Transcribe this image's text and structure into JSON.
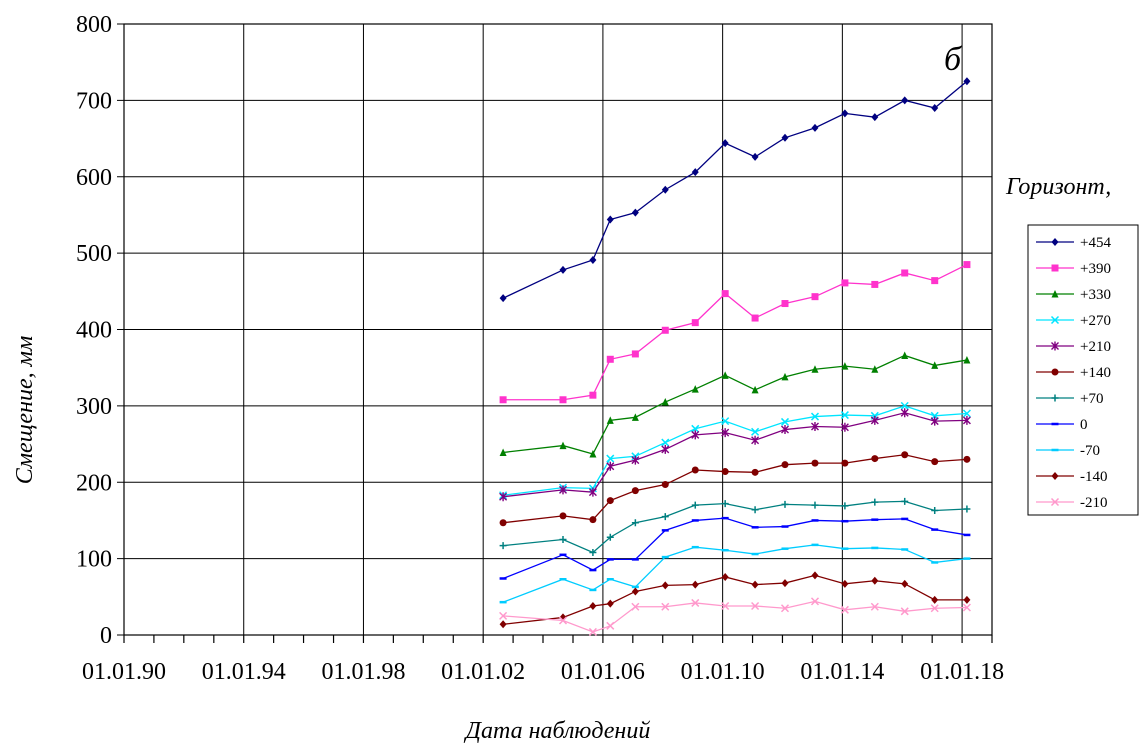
{
  "chart_data": {
    "type": "line",
    "xlabel": "Дата наблюдений",
    "ylabel": "Смещение, мм",
    "panel_label": "б",
    "legend_title": "Горизонт,",
    "legend_placement": "right",
    "grid": true,
    "ylim": [
      0,
      800
    ],
    "y_ticks": [
      0,
      100,
      200,
      300,
      400,
      500,
      600,
      700,
      800
    ],
    "xlim": [
      "1990-01-01",
      "2019-01-01"
    ],
    "x_tick_dates": [
      "1990-01-01",
      "1994-01-01",
      "1998-01-01",
      "2002-01-01",
      "2006-01-01",
      "2010-01-01",
      "2014-01-01",
      "2018-01-01"
    ],
    "x_tick_labels": [
      "01.01.90",
      "01.01.94",
      "01.01.98",
      "01.01.02",
      "01.01.06",
      "01.01.10",
      "01.01.14",
      "01.01.18"
    ],
    "x": [
      "2002-09-01",
      "2004-09-01",
      "2005-09-01",
      "2006-04-01",
      "2007-02-01",
      "2008-02-01",
      "2009-02-01",
      "2010-02-01",
      "2011-02-01",
      "2012-02-01",
      "2013-02-01",
      "2014-02-01",
      "2015-02-01",
      "2016-02-01",
      "2017-02-01",
      "2018-03-01"
    ],
    "series": [
      {
        "name": "+454",
        "color": "#000080",
        "marker": "diamond",
        "values": [
          441,
          478,
          491,
          544,
          553,
          583,
          606,
          644,
          626,
          651,
          664,
          683,
          678,
          700,
          690,
          725
        ]
      },
      {
        "name": "+390",
        "color": "#ff33cc",
        "marker": "square",
        "values": [
          308,
          308,
          314,
          361,
          368,
          399,
          409,
          447,
          415,
          434,
          443,
          461,
          459,
          474,
          464,
          485
        ]
      },
      {
        "name": "+330",
        "color": "#008000",
        "marker": "triangle",
        "values": [
          239,
          248,
          237,
          281,
          285,
          305,
          322,
          340,
          321,
          338,
          348,
          352,
          348,
          366,
          353,
          360
        ]
      },
      {
        "name": "+270",
        "color": "#00e5ff",
        "marker": "x",
        "values": [
          183,
          193,
          192,
          231,
          234,
          252,
          270,
          280,
          266,
          279,
          286,
          288,
          287,
          300,
          287,
          290
        ]
      },
      {
        "name": "+210",
        "color": "#800080",
        "marker": "star",
        "values": [
          181,
          190,
          187,
          221,
          229,
          243,
          262,
          265,
          255,
          269,
          273,
          272,
          281,
          291,
          280,
          281
        ]
      },
      {
        "name": "+140",
        "color": "#800000",
        "marker": "circle",
        "values": [
          147,
          156,
          151,
          176,
          189,
          197,
          216,
          214,
          213,
          223,
          225,
          225,
          231,
          236,
          227,
          230
        ]
      },
      {
        "name": "+70",
        "color": "#008080",
        "marker": "plus",
        "values": [
          117,
          125,
          108,
          128,
          147,
          155,
          170,
          172,
          164,
          171,
          170,
          169,
          174,
          175,
          163,
          165
        ]
      },
      {
        "name": "0",
        "color": "#0000ff",
        "marker": "dash",
        "values": [
          74,
          105,
          85,
          99,
          99,
          137,
          150,
          153,
          141,
          142,
          150,
          149,
          151,
          152,
          138,
          131
        ]
      },
      {
        "name": "-70",
        "color": "#00ccff",
        "marker": "dash",
        "values": [
          43,
          73,
          59,
          73,
          63,
          102,
          115,
          111,
          106,
          113,
          118,
          113,
          114,
          112,
          95,
          100
        ]
      },
      {
        "name": "-140",
        "color": "#800000",
        "marker": "diamond",
        "values": [
          14,
          23,
          38,
          41,
          57,
          65,
          66,
          76,
          66,
          68,
          78,
          67,
          71,
          67,
          46,
          46
        ]
      },
      {
        "name": "-210",
        "color": "#ff99cc",
        "marker": "x",
        "values": [
          25,
          19,
          4,
          12,
          37,
          37,
          42,
          38,
          38,
          35,
          44,
          33,
          37,
          31,
          35,
          36
        ]
      }
    ]
  }
}
